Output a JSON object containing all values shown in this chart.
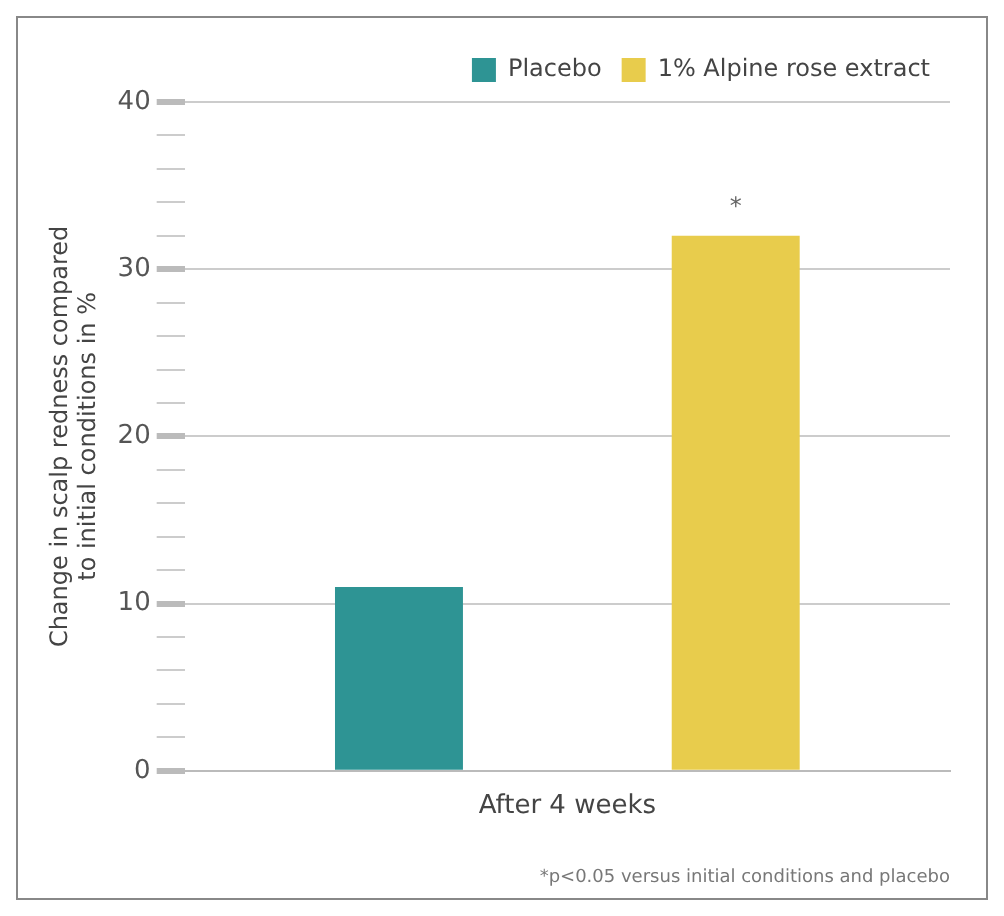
{
  "chart_data": {
    "type": "bar",
    "categories": [
      "After 4 weeks"
    ],
    "series": [
      {
        "name": "Placebo",
        "color": "#2e9494",
        "values": [
          11
        ]
      },
      {
        "name": "1% Alpine rose extract",
        "color": "#e8cc4c",
        "values": [
          32
        ]
      }
    ],
    "ylabel": "Change in scalp redness compared to initial conditions in %",
    "ylim": [
      0,
      40
    ],
    "yticks": [
      0,
      {
        "value": 2,
        "label": null
      },
      {
        "value": 4,
        "label": null
      },
      {
        "value": 6,
        "label": null
      },
      {
        "value": 8,
        "label": null
      },
      10,
      {
        "value": 12,
        "label": null
      },
      {
        "value": 14,
        "label": null
      },
      {
        "value": 16,
        "label": null
      },
      {
        "value": 18,
        "label": null
      },
      20,
      {
        "value": 22,
        "label": null
      },
      {
        "value": 24,
        "label": null
      },
      {
        "value": 26,
        "label": null
      },
      {
        "value": 28,
        "label": null
      },
      30,
      {
        "value": 32,
        "label": null
      },
      {
        "value": 34,
        "label": null
      },
      {
        "value": 36,
        "label": null
      },
      {
        "value": 38,
        "label": null
      },
      40
    ],
    "grid": "y",
    "legend": "top right",
    "annotations": [
      "*",
      "*p<0.05 versus initial conditions and placebo"
    ]
  }
}
